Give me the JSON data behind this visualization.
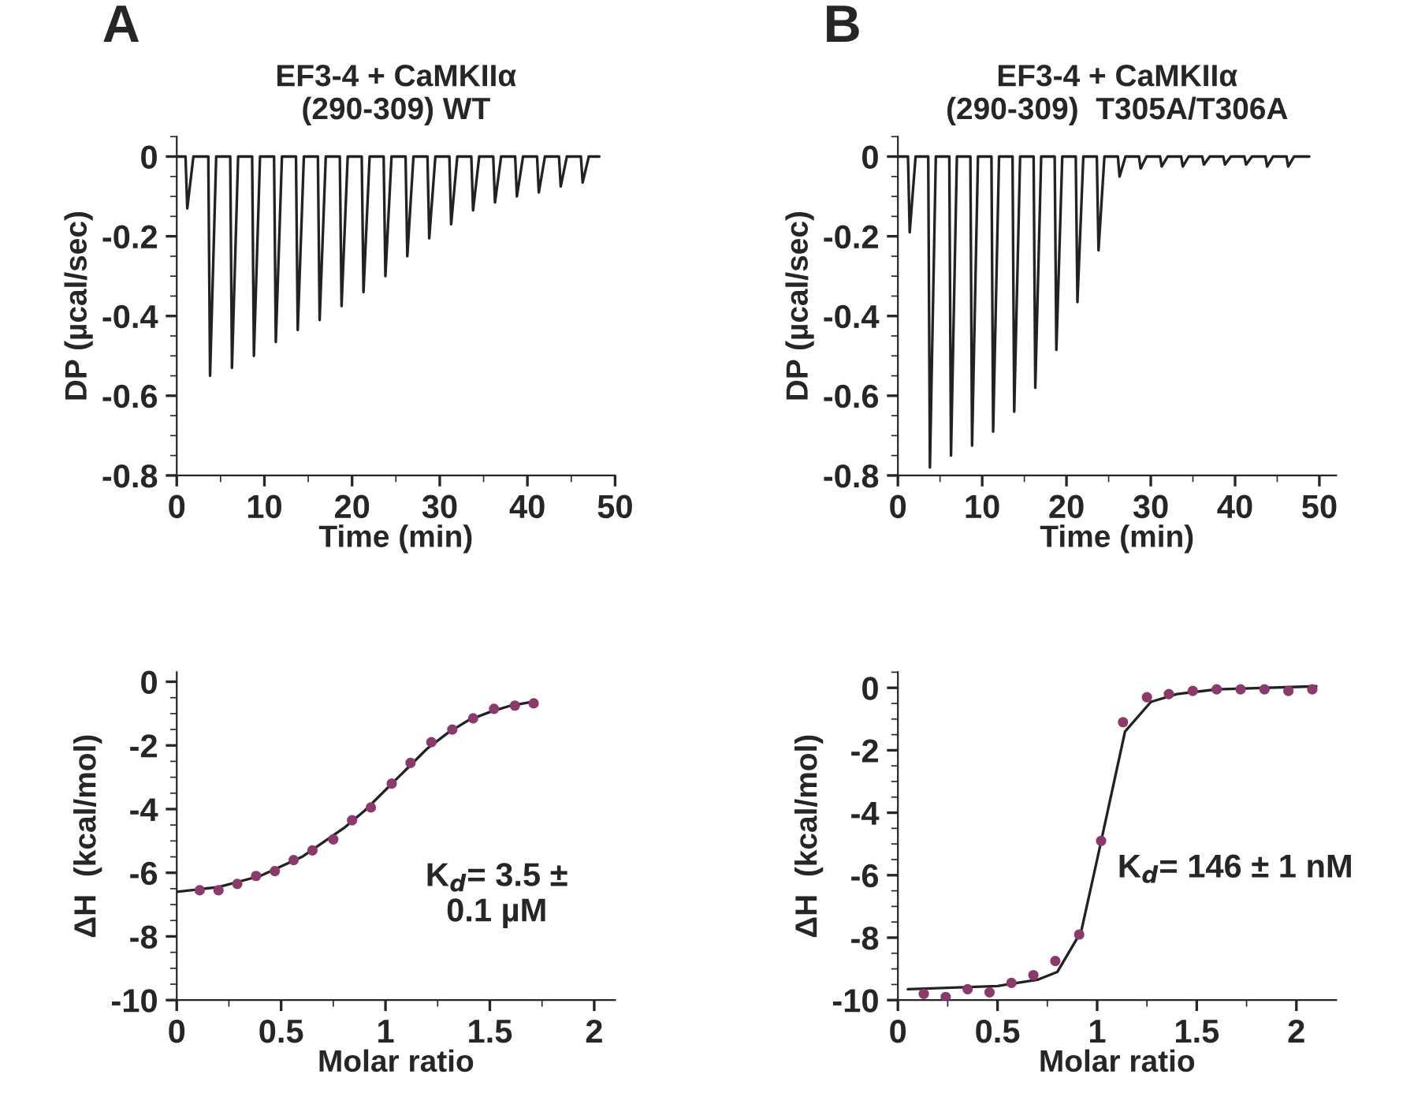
{
  "chart_data": [
    {
      "type": "line",
      "title": "EF3-4 + CaMKIIα\n(290-309) WT",
      "xlabel": "Time (min)",
      "ylabel": "DP (µcal/sec)",
      "annotations": [
        "A"
      ],
      "xlim": [
        0,
        50
      ],
      "xticks": [
        0,
        10,
        20,
        30,
        40,
        50
      ],
      "ylim": [
        -0.8,
        0.05
      ],
      "yticks": [
        {
          "value": -0.8,
          "label": "-0.8"
        },
        {
          "value": -0.6,
          "label": "-0.6"
        },
        {
          "value": -0.4,
          "label": "-0.4"
        },
        {
          "value": -0.2,
          "label": "-0.2"
        },
        {
          "value": 0,
          "label": "0"
        }
      ],
      "grid": false,
      "marker": "none",
      "line_style": "solid",
      "series": [
        {
          "color": "#222222",
          "x": [
            0,
            1.0,
            1.2,
            1.9,
            3.6,
            3.8,
            4.5,
            6.1,
            6.3,
            7.0,
            8.6,
            8.8,
            9.5,
            11.1,
            11.3,
            12.0,
            13.6,
            13.8,
            14.5,
            16.1,
            16.3,
            17.0,
            18.6,
            18.8,
            19.5,
            21.1,
            21.3,
            22.0,
            23.6,
            23.8,
            24.5,
            26.1,
            26.3,
            27.0,
            28.6,
            28.8,
            29.5,
            31.1,
            31.3,
            32.0,
            33.6,
            33.8,
            34.5,
            36.1,
            36.3,
            37.0,
            38.6,
            38.8,
            39.5,
            41.1,
            41.3,
            42.0,
            43.6,
            43.8,
            44.5,
            46.1,
            46.3,
            47.0,
            48.2
          ],
          "values": [
            0,
            0,
            -0.13,
            0,
            0,
            -0.55,
            0,
            0,
            -0.53,
            0,
            0,
            -0.5,
            0,
            0,
            -0.465,
            0,
            0,
            -0.435,
            0,
            0,
            -0.41,
            0,
            0,
            -0.375,
            0,
            0,
            -0.34,
            0,
            0,
            -0.3,
            0,
            0,
            -0.25,
            0,
            0,
            -0.205,
            0,
            0,
            -0.17,
            0,
            0,
            -0.135,
            0,
            0,
            -0.115,
            0,
            0,
            -0.1,
            0,
            0,
            -0.09,
            0,
            0,
            -0.075,
            0,
            0,
            -0.065,
            0,
            0
          ]
        }
      ]
    },
    {
      "type": "line",
      "title": "EF3-4 + CaMKIIα\n(290-309)  T305A/T306A",
      "xlabel": "Time (min)",
      "ylabel": "DP (µcal/sec)",
      "annotations": [
        "B"
      ],
      "xlim": [
        0,
        52
      ],
      "xticks": [
        0,
        10,
        20,
        30,
        40,
        50
      ],
      "ylim": [
        -0.8,
        0.05
      ],
      "yticks": [
        {
          "value": -0.8,
          "label": "-0.8"
        },
        {
          "value": -0.6,
          "label": "-0.6"
        },
        {
          "value": -0.4,
          "label": "-0.4"
        },
        {
          "value": -0.2,
          "label": "-0.2"
        },
        {
          "value": 0,
          "label": "0"
        }
      ],
      "grid": false,
      "marker": "none",
      "line_style": "solid",
      "series": [
        {
          "color": "#222222",
          "x": [
            0,
            1.2,
            1.4,
            2.1,
            3.6,
            3.8,
            4.5,
            6.1,
            6.3,
            7.0,
            8.6,
            8.8,
            9.5,
            11.1,
            11.3,
            12.0,
            13.6,
            13.8,
            14.5,
            16.1,
            16.3,
            17.0,
            18.6,
            18.8,
            19.5,
            21.1,
            21.3,
            22.0,
            23.6,
            23.8,
            24.5,
            26.1,
            26.3,
            27.0,
            28.6,
            28.8,
            29.5,
            31.1,
            31.3,
            32.0,
            33.6,
            33.8,
            34.5,
            36.1,
            36.3,
            37.0,
            38.6,
            38.8,
            39.5,
            41.1,
            41.3,
            42.0,
            43.6,
            43.8,
            44.5,
            46.1,
            46.3,
            47.0,
            48.8
          ],
          "values": [
            0,
            0,
            -0.19,
            0,
            0,
            -0.78,
            0,
            0,
            -0.75,
            0,
            0,
            -0.725,
            0,
            0,
            -0.69,
            0,
            0,
            -0.64,
            0,
            0,
            -0.58,
            0,
            0,
            -0.485,
            0,
            0,
            -0.365,
            0,
            0,
            -0.235,
            0,
            0,
            -0.05,
            0,
            0,
            -0.03,
            0,
            0,
            -0.025,
            0,
            0,
            -0.025,
            0,
            0,
            -0.02,
            0,
            0,
            -0.02,
            0,
            0,
            -0.02,
            0,
            0,
            -0.025,
            0,
            0,
            -0.025,
            0,
            0
          ]
        }
      ]
    },
    {
      "type": "scatter",
      "xlabel": "Molar ratio",
      "ylabel": "ΔH  (kcal/mol)",
      "annotations": [
        "K$_{d}$= 3.5 ±\n0.1 µM"
      ],
      "xlim": [
        0,
        2.1
      ],
      "xticks": [
        0,
        0.5,
        1,
        1.5,
        2
      ],
      "ylim": [
        -10,
        0.3
      ],
      "yticks": [
        -10,
        -8,
        -6,
        -4,
        -2,
        0
      ],
      "grid": false,
      "marker": "circle",
      "series": [
        {
          "type": "scatter",
          "color": "#8b3a6b",
          "x": [
            0.11,
            0.2,
            0.29,
            0.38,
            0.47,
            0.56,
            0.65,
            0.75,
            0.84,
            0.93,
            1.03,
            1.12,
            1.22,
            1.32,
            1.42,
            1.52,
            1.62,
            1.71
          ],
          "values": [
            -6.55,
            -6.55,
            -6.35,
            -6.1,
            -5.95,
            -5.6,
            -5.3,
            -4.95,
            -4.35,
            -3.95,
            -3.2,
            -2.55,
            -1.9,
            -1.5,
            -1.15,
            -0.85,
            -0.75,
            -0.68
          ]
        },
        {
          "type": "line",
          "marker": "none",
          "color": "#222222",
          "x": [
            0,
            0.2,
            0.4,
            0.6,
            0.8,
            0.9,
            1.0,
            1.1,
            1.2,
            1.3,
            1.4,
            1.5,
            1.6,
            1.71
          ],
          "values": [
            -6.6,
            -6.45,
            -6.1,
            -5.5,
            -4.6,
            -4.05,
            -3.4,
            -2.75,
            -2.1,
            -1.6,
            -1.2,
            -0.95,
            -0.75,
            -0.62
          ]
        }
      ]
    },
    {
      "type": "scatter",
      "xlabel": "Molar ratio",
      "ylabel": "ΔH  (kcal/mol)",
      "annotations": [
        "K$_{d}$= 146 ± 1 nM"
      ],
      "xlim": [
        0,
        2.2
      ],
      "xticks": [
        0,
        0.5,
        1,
        1.5,
        2
      ],
      "ylim": [
        -10,
        0.5
      ],
      "yticks": [
        -10,
        -8,
        -6,
        -4,
        -2,
        0
      ],
      "grid": false,
      "marker": "circle",
      "series": [
        {
          "type": "scatter",
          "color": "#8b3a6b",
          "x": [
            0.13,
            0.24,
            0.35,
            0.46,
            0.57,
            0.68,
            0.79,
            0.91,
            1.02,
            1.13,
            1.25,
            1.36,
            1.48,
            1.6,
            1.72,
            1.84,
            1.96,
            2.08
          ],
          "values": [
            -9.8,
            -9.9,
            -9.65,
            -9.75,
            -9.45,
            -9.2,
            -8.75,
            -7.9,
            -4.9,
            -1.1,
            -0.3,
            -0.2,
            -0.1,
            -0.05,
            -0.05,
            -0.05,
            -0.1,
            -0.05
          ]
        },
        {
          "type": "line",
          "marker": "none",
          "color": "#222222",
          "x": [
            0.05,
            0.5,
            0.7,
            0.8,
            0.92,
            1.0,
            1.14,
            1.27,
            1.4,
            1.6,
            2.1
          ],
          "values": [
            -9.65,
            -9.55,
            -9.35,
            -9.1,
            -7.8,
            -5.5,
            -1.4,
            -0.45,
            -0.2,
            -0.05,
            0.05
          ]
        }
      ]
    }
  ]
}
